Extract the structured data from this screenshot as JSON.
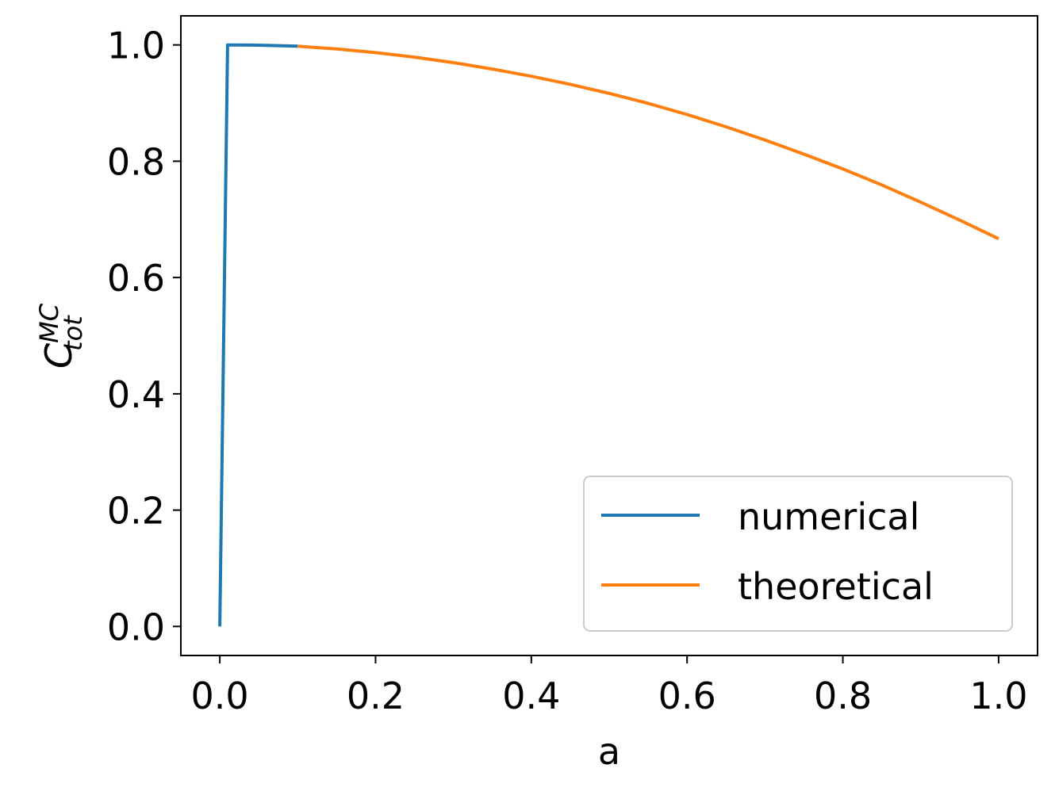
{
  "chart_data": {
    "type": "line",
    "title": "",
    "xlabel": "a",
    "ylabel": {
      "base": "C",
      "superscript": "MC",
      "subscript": "tot"
    },
    "xlim": [
      -0.05,
      1.05
    ],
    "ylim": [
      -0.05,
      1.05
    ],
    "xticks": [
      0.0,
      0.2,
      0.4,
      0.6,
      0.8,
      1.0
    ],
    "xtick_labels": [
      "0.0",
      "0.2",
      "0.4",
      "0.6",
      "0.8",
      "1.0"
    ],
    "yticks": [
      0.0,
      0.2,
      0.4,
      0.6,
      0.8,
      1.0
    ],
    "ytick_labels": [
      "0.0",
      "0.2",
      "0.4",
      "0.6",
      "0.8",
      "1.0"
    ],
    "grid": false,
    "legend_position": "lower-right",
    "series": [
      {
        "name": "numerical",
        "color": "#1f77b4",
        "x": [
          0.0,
          0.01,
          0.02,
          0.04,
          0.06,
          0.08,
          0.1
        ],
        "y": [
          0.0,
          0.9999,
          0.9999,
          0.9997,
          0.9992,
          0.9986,
          0.9978
        ]
      },
      {
        "name": "theoretical",
        "color": "#ff7f0e",
        "x": [
          0.1,
          0.15,
          0.2,
          0.25,
          0.3,
          0.35,
          0.4,
          0.45,
          0.5,
          0.55,
          0.6,
          0.65,
          0.7,
          0.75,
          0.8,
          0.85,
          0.9,
          0.95,
          1.0
        ],
        "y": [
          0.9978,
          0.9932,
          0.9867,
          0.979,
          0.9696,
          0.9586,
          0.9462,
          0.9322,
          0.9167,
          0.8995,
          0.8803,
          0.8592,
          0.8365,
          0.8121,
          0.7868,
          0.7592,
          0.7295,
          0.6987,
          0.6667
        ]
      }
    ]
  }
}
